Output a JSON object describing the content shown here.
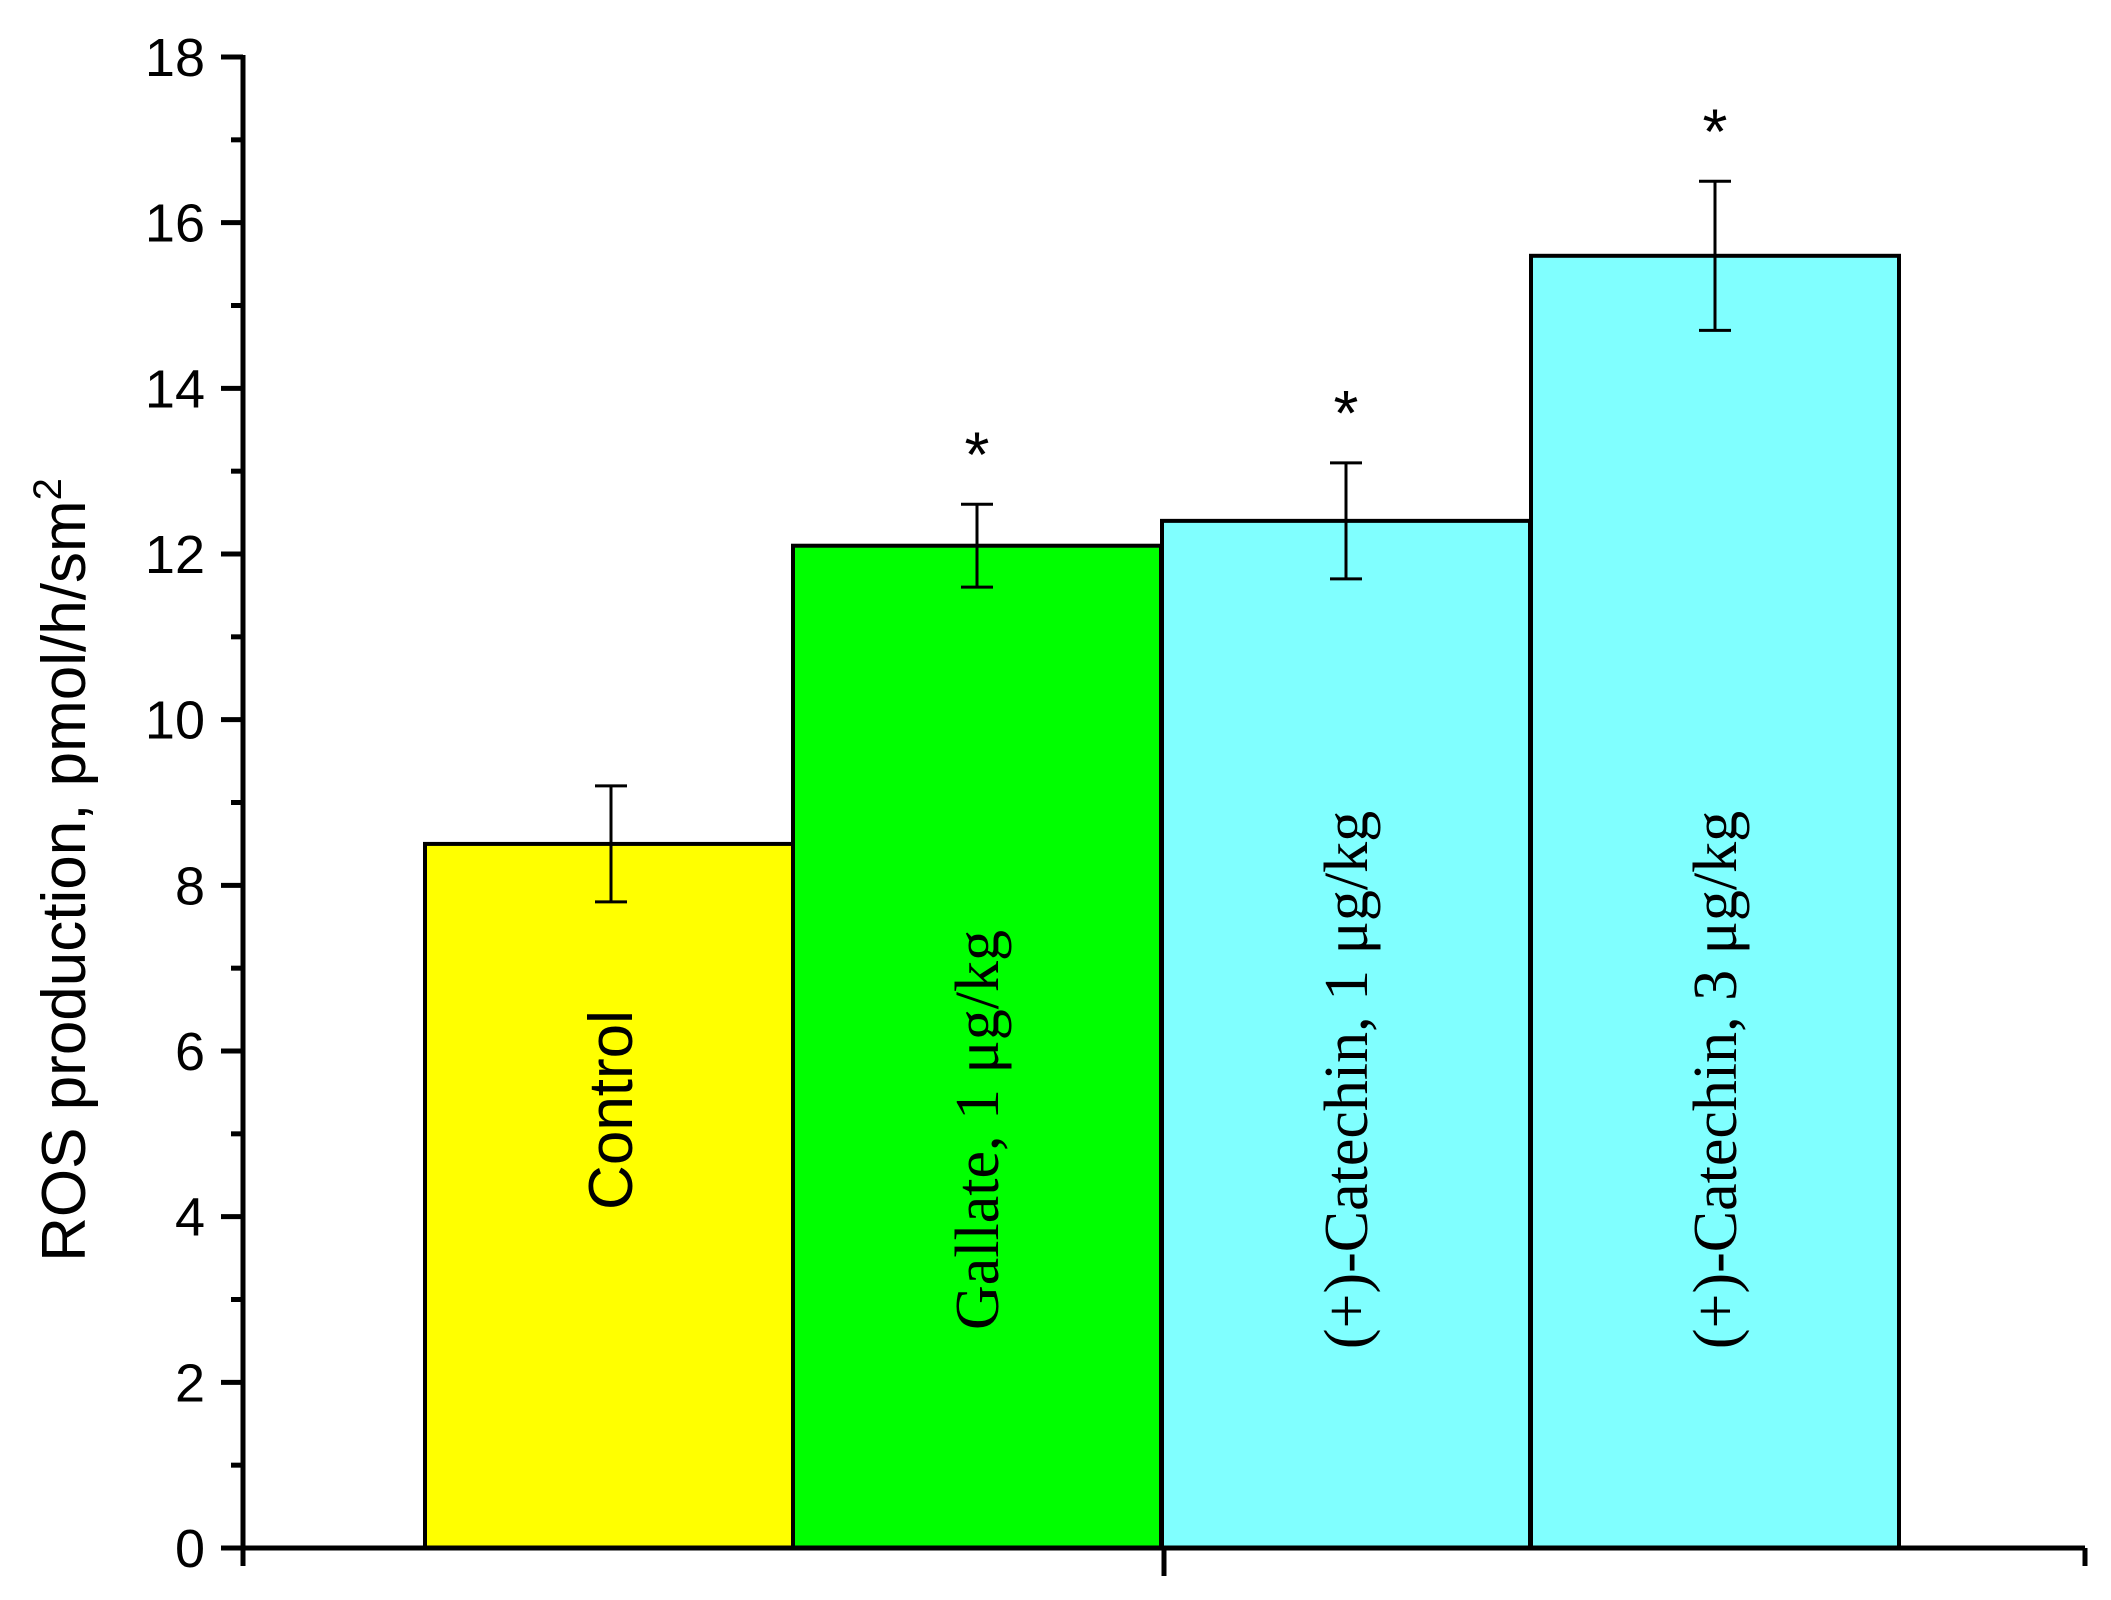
{
  "chart_data": {
    "type": "bar",
    "ylabel": "ROS production, pmol/h/sm",
    "ylabel_superscript": "2",
    "ylim": [
      0,
      18
    ],
    "yticks": [
      "0",
      "2",
      "4",
      "6",
      "8",
      "10",
      "12",
      "14",
      "16",
      "18"
    ],
    "grid": false,
    "legend": "none",
    "bars": [
      {
        "label": "Control",
        "value": 8.5,
        "error": 0.7,
        "color": "#ffff00",
        "significance": ""
      },
      {
        "label": "Gallate, 1 μg/kg",
        "value": 12.1,
        "error": 0.5,
        "color": "#00ff00",
        "significance": "*"
      },
      {
        "label": "(+)-Catechin, 1 μg/kg",
        "value": 12.4,
        "error": 0.7,
        "color": "#80ffff",
        "significance": "*"
      },
      {
        "label": "(+)-Catechin, 3 μg/kg",
        "value": 15.6,
        "error": 0.9,
        "color": "#80ffff",
        "significance": "*"
      }
    ]
  }
}
